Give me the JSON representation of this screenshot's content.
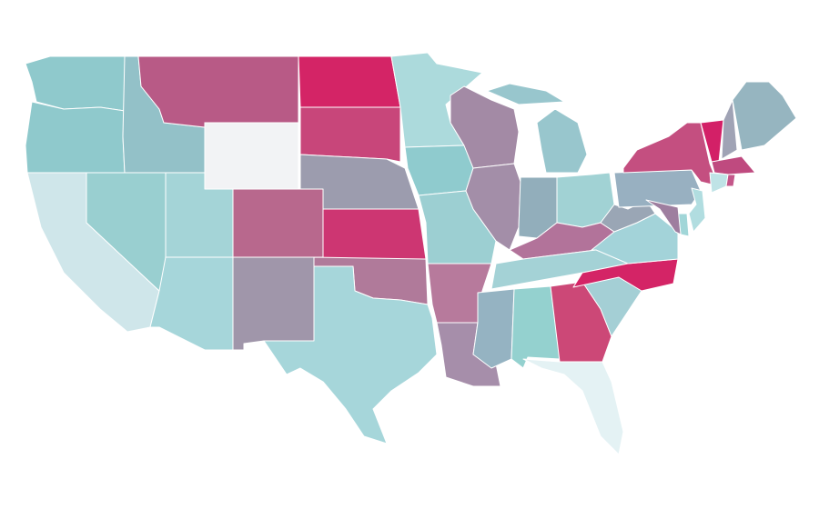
{
  "map": {
    "regions": [
      {
        "color": "#8fc9cc"
      },
      {
        "color": "#8fc9cc"
      },
      {
        "color": "#cfe6ea"
      },
      {
        "color": "#99cfd0"
      },
      {
        "color": "#93c1c8"
      },
      {
        "color": "#b85a86"
      },
      {
        "color": "#f2f3f5"
      },
      {
        "color": "#a4d4d7"
      },
      {
        "color": "#a6d6da"
      },
      {
        "color": "#b8688d"
      },
      {
        "color": "#a096aa"
      },
      {
        "color": "#d42466"
      },
      {
        "color": "#c8467a"
      },
      {
        "color": "#9c9cae"
      },
      {
        "color": "#cd3672"
      },
      {
        "color": "#b07a9a"
      },
      {
        "color": "#a6d6da"
      },
      {
        "color": "#acdadc"
      },
      {
        "color": "#8fcbce"
      },
      {
        "color": "#9ccfd2"
      },
      {
        "color": "#b77a9c"
      },
      {
        "color": "#a68eaa"
      },
      {
        "color": "#a38aa5"
      },
      {
        "color": "#a38ea8"
      },
      {
        "color": "#98c6cd"
      },
      {
        "color": "#98c6cd"
      },
      {
        "color": "#92aebb"
      },
      {
        "color": "#a1d2d4"
      },
      {
        "color": "#b2739a"
      },
      {
        "color": "#a4d2d6"
      },
      {
        "color": "#95b3c2"
      },
      {
        "color": "#94d1cf"
      },
      {
        "color": "#cc4877"
      },
      {
        "color": "#e4f2f4"
      },
      {
        "color": "#a4cfd5"
      },
      {
        "color": "#d42466"
      },
      {
        "color": "#a3d3d9"
      },
      {
        "color": "#9aa6b5"
      },
      {
        "color": "#98b0c1"
      },
      {
        "color": "#c44f80"
      },
      {
        "color": "#d32067"
      },
      {
        "color": "#a0a3b5"
      },
      {
        "color": "#96b5c0"
      },
      {
        "color": "#bf4a7f"
      },
      {
        "color": "#bfe3e6"
      },
      {
        "color": "#c4578a"
      },
      {
        "color": "#b1dde0"
      },
      {
        "color": "#a1d6d8"
      },
      {
        "color": "#9e7e9f"
      }
    ]
  }
}
